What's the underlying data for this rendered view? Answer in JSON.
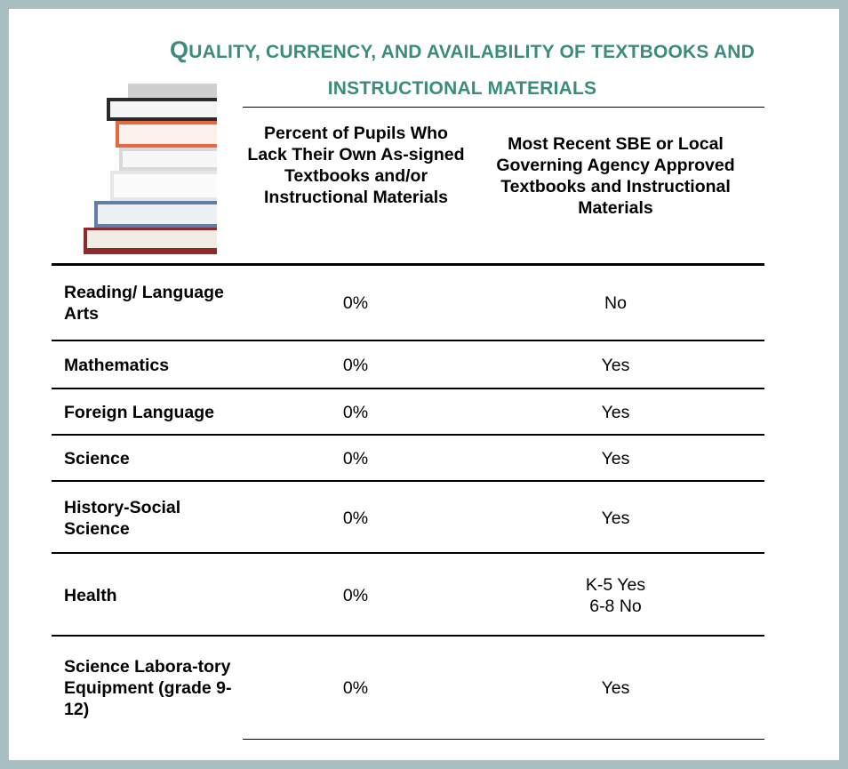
{
  "header": {
    "title": "QUALITY, CURRENCY, AND AVAILABILITY OF TEXTBOOKS AND INSTRUCTIONAL MATERIALS"
  },
  "table": {
    "columns": [
      "Percent of Pupils Who Lack Their Own As-signed Textbooks and/or Instructional Materials",
      "Most Recent SBE or Local Governing Agency Approved Textbooks and Instructional Materials"
    ],
    "rows": [
      [
        "Reading/ Language Arts",
        "0%",
        "No"
      ],
      [
        "Mathematics",
        "0%",
        "Yes"
      ],
      [
        "Foreign Language",
        "0%",
        "Yes"
      ],
      [
        "Science",
        "0%",
        "Yes"
      ],
      [
        "History-Social Science",
        "0%",
        "Yes"
      ],
      [
        "Health",
        "0%",
        "K-5 Yes\n6-8  No"
      ],
      [
        "Science Labora-tory Equipment (grade 9-12)",
        "0%",
        "Yes"
      ]
    ]
  }
}
